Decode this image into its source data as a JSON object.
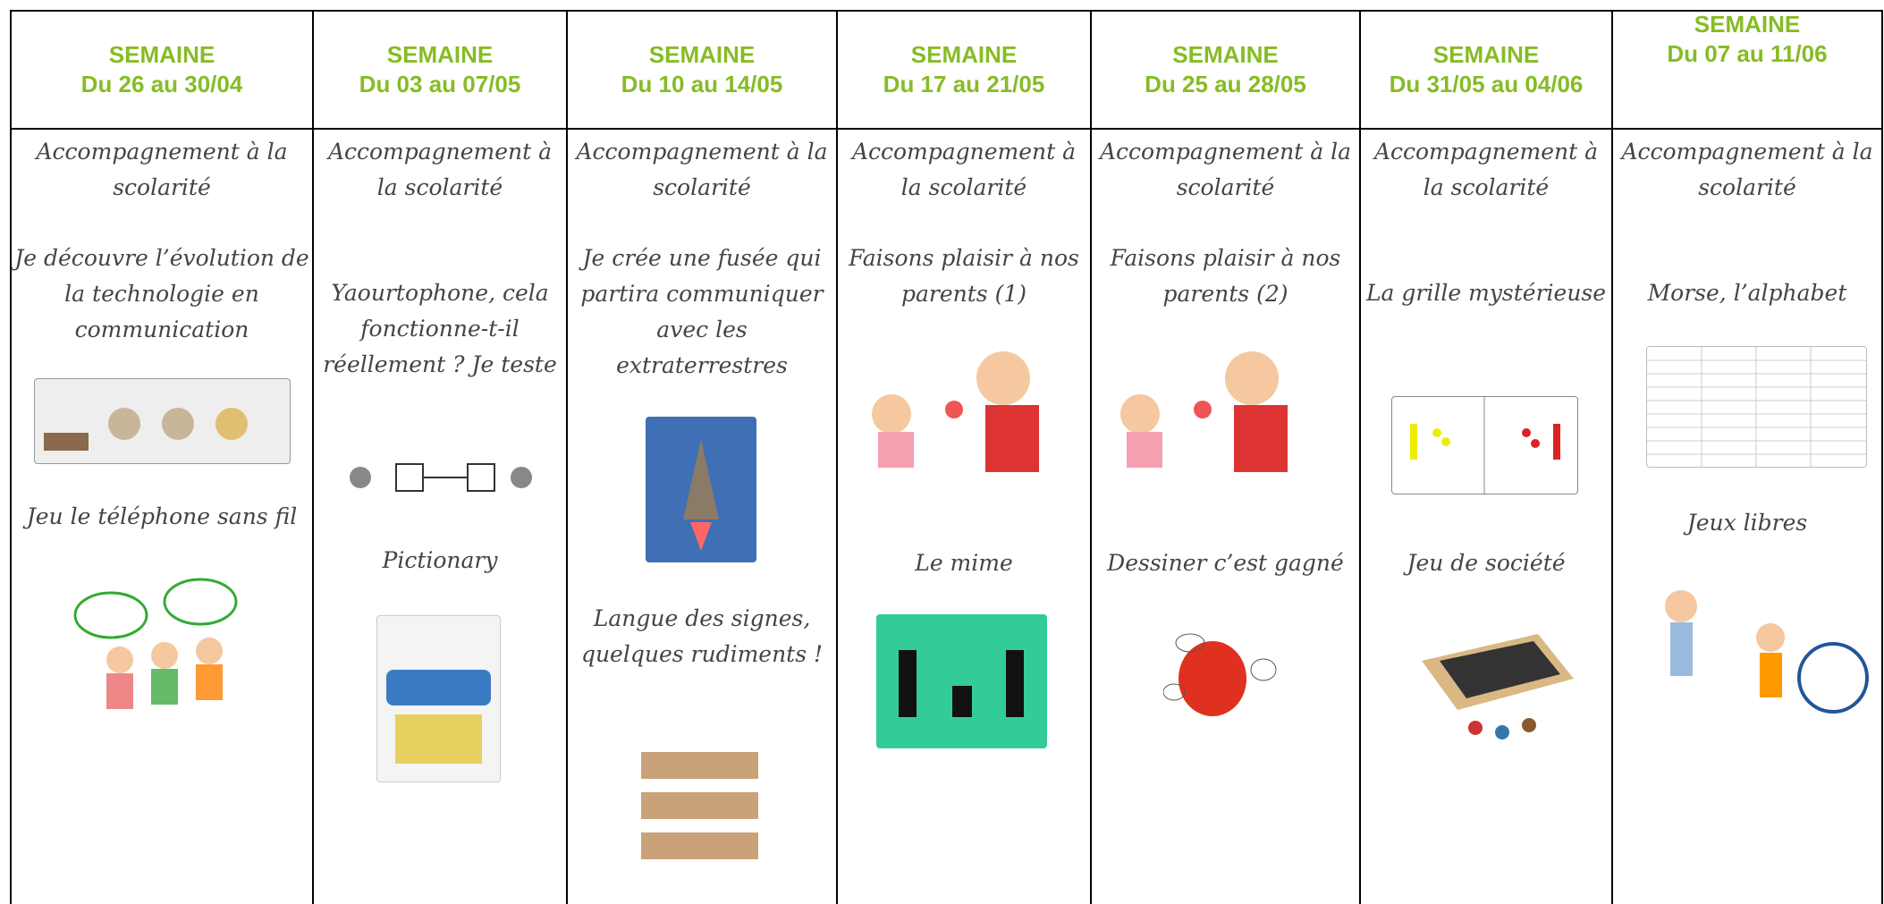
{
  "columns": [
    {
      "week": "SEMAINE",
      "dates": "Du 26 au 30/04",
      "activities": [
        "Accompagnement à la scolarité",
        "Je découvre l’évolution de la technologie en communication",
        "Jeu le téléphone sans fil"
      ]
    },
    {
      "week": "SEMAINE",
      "dates": "Du 03 au 07/05",
      "activities": [
        "Accompagnement à la scolarité",
        "Yaourtophone, cela fonctionne-t-il réellement ? Je teste",
        "Pictionary"
      ]
    },
    {
      "week": "SEMAINE",
      "dates": "Du 10 au 14/05",
      "activities": [
        "Accompagnement à la scolarité",
        "Je crée une fusée qui partira communiquer avec les extraterrestres",
        "Langue des signes, quelques rudiments !"
      ]
    },
    {
      "week": "SEMAINE",
      "dates": "Du 17 au 21/05",
      "activities": [
        "Accompagnement à la scolarité",
        "Faisons plaisir à nos parents (1)",
        "Le mime"
      ]
    },
    {
      "week": "SEMAINE",
      "dates": "Du 25 au 28/05",
      "activities": [
        "Accompagnement à la scolarité",
        "Faisons plaisir à nos parents (2)",
        "Dessiner c’est gagné"
      ]
    },
    {
      "week": "SEMAINE",
      "dates": "Du 31/05 au 04/06",
      "activities": [
        "Accompagnement à la scolarité",
        "La grille mystérieuse",
        "Jeu de société"
      ]
    },
    {
      "week": "SEMAINE",
      "dates": "Du 07 au 11/06",
      "activities": [
        "Accompagnement à la scolarité",
        "Morse, l’alphabet",
        "Jeux libres"
      ]
    }
  ]
}
